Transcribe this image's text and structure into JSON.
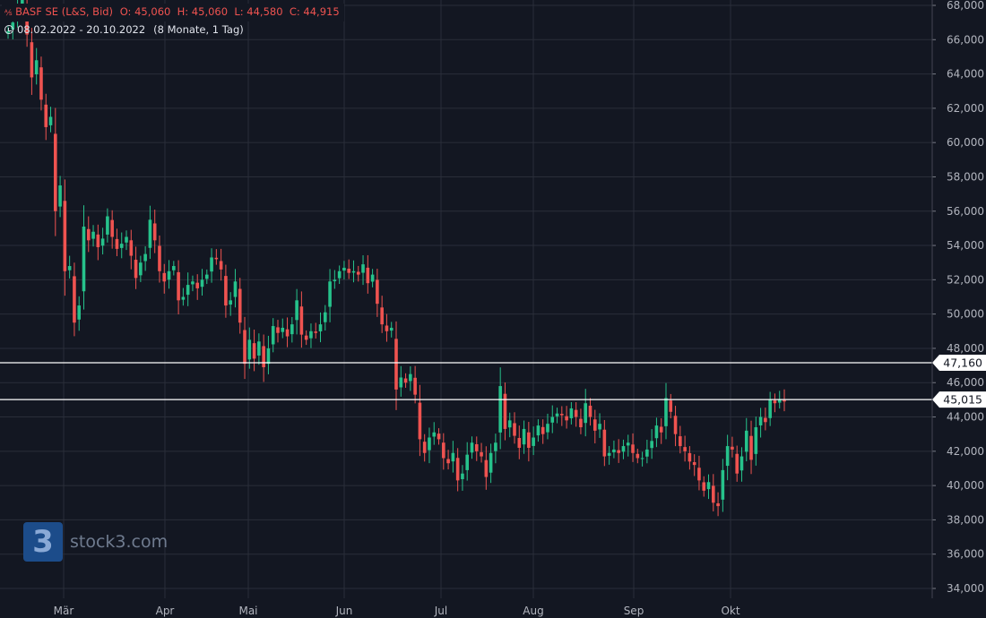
{
  "header": {
    "icon": "ticker-icon",
    "name": "BASF SE (L&S, Bid)",
    "ohlc": "O: 45,060  H: 45,060  L: 44,580  C: 44,915",
    "range": "08.02.2022 - 20.10.2022",
    "interval": "(8 Monate, 1 Tag)"
  },
  "watermark": {
    "mark": "3",
    "text": "stock3.com"
  },
  "colors": {
    "background": "#131722",
    "up": "#26c28b",
    "down": "#ef5350",
    "grid": "#2a2e39",
    "line": "#ffffff"
  },
  "chart_data": {
    "type": "candlestick",
    "title": "BASF SE (L&S, Bid)",
    "y_axis": {
      "min": 33000,
      "max": 68500,
      "ticks": [
        "34,000",
        "36,000",
        "38,000",
        "40,000",
        "42,000",
        "44,000",
        "46,000",
        "48,000",
        "50,000",
        "52,000",
        "54,000",
        "56,000",
        "58,000",
        "60,000",
        "62,000",
        "64,000",
        "66,000",
        "68,000"
      ],
      "position": "right"
    },
    "x_axis": {
      "labels": [
        "Mär",
        "Apr",
        "Mai",
        "Jun",
        "Jul",
        "Aug",
        "Sep",
        "Okt"
      ]
    },
    "horizontal_lines": [
      {
        "value": 47160,
        "label": "47,160"
      },
      {
        "value": 45015,
        "label": "45,015"
      }
    ],
    "series_close": [
      66.5,
      67.0,
      67.8,
      68.4,
      66.3,
      63.8,
      64.8,
      62.5,
      60.9,
      61.5,
      56.0,
      57.5,
      52.5,
      52.8,
      49.5,
      50.5,
      55.1,
      54.3,
      54.8,
      53.9,
      54.4,
      55.7,
      54.5,
      53.8,
      54.1,
      54.5,
      53.4,
      52.1,
      53.0,
      53.5,
      55.5,
      54.3,
      52.5,
      51.9,
      52.5,
      52.8,
      50.8,
      51.0,
      51.7,
      51.9,
      51.5,
      52.0,
      52.3,
      53.3,
      53.2,
      52.6,
      50.5,
      50.8,
      51.9,
      49.5,
      47.1,
      48.5,
      47.4,
      48.4,
      46.9,
      48.0,
      49.3,
      48.9,
      49.2,
      48.7,
      49.4,
      50.8,
      48.8,
      48.5,
      49.0,
      48.9,
      49.4,
      50.1,
      51.9,
      52.0,
      52.5,
      52.7,
      52.4,
      52.5,
      52.3,
      52.9,
      51.8,
      52.3,
      50.6,
      49.4,
      49.0,
      49.2,
      45.6,
      46.3,
      46.0,
      46.5,
      45.3,
      42.7,
      41.9,
      42.8,
      43.1,
      42.7,
      41.6,
      41.3,
      41.9,
      40.3,
      40.7,
      41.8,
      42.5,
      42.0,
      41.7,
      40.5,
      41.9,
      42.5,
      45.8,
      43.3,
      43.8,
      42.9,
      42.2,
      43.3,
      42.2,
      42.8,
      43.5,
      43.0,
      43.6,
      44.0,
      44.2,
      44.1,
      43.8,
      44.5,
      44.0,
      43.4,
      44.8,
      44.0,
      43.2,
      43.6,
      41.7,
      41.9,
      42.1,
      41.9,
      42.3,
      42.5,
      41.9,
      41.6,
      41.6,
      42.1,
      42.6,
      43.5,
      43.1,
      45.1,
      44.3,
      43.0,
      42.3,
      42.0,
      41.4,
      41.2,
      40.3,
      39.7,
      40.2,
      39.0,
      38.8,
      40.9,
      42.3,
      42.1,
      40.7,
      41.7,
      43.2,
      41.5,
      43.4,
      44.0,
      43.7,
      45.0,
      44.8,
      45.0,
      44.9
    ]
  }
}
